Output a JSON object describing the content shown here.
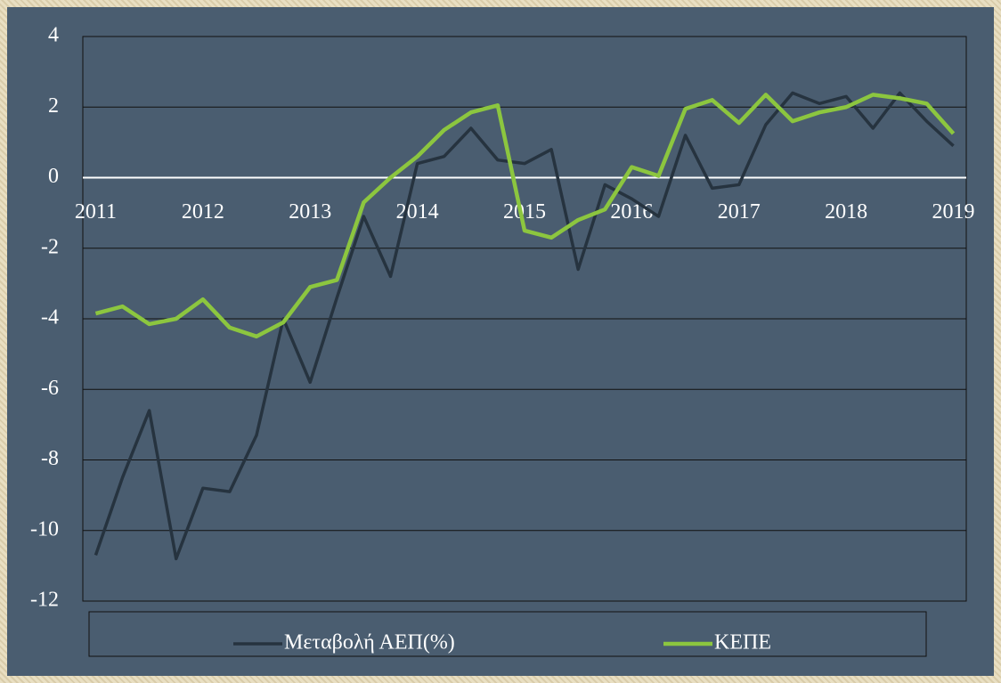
{
  "chart_data": {
    "type": "line",
    "x": [
      2011,
      2011.25,
      2011.5,
      2011.75,
      2012,
      2012.25,
      2012.5,
      2012.75,
      2013,
      2013.25,
      2013.5,
      2013.75,
      2014,
      2014.25,
      2014.5,
      2014.75,
      2015,
      2015.25,
      2015.5,
      2015.75,
      2016,
      2016.25,
      2016.5,
      2016.75,
      2017,
      2017.25,
      2017.5,
      2017.75,
      2018,
      2018.25,
      2018.5,
      2018.75,
      2019
    ],
    "series": [
      {
        "name": "Μεταβολή ΑΕΠ(%)",
        "color": "#26333f",
        "values": [
          -10.7,
          -8.5,
          -6.6,
          -10.8,
          -8.8,
          -8.9,
          -7.3,
          -4.0,
          -5.8,
          -3.4,
          -1.1,
          -2.8,
          0.4,
          0.6,
          1.4,
          0.5,
          0.4,
          0.8,
          -2.6,
          -0.2,
          -0.6,
          -1.1,
          1.2,
          -0.3,
          -0.2,
          1.5,
          2.4,
          2.1,
          2.3,
          1.4,
          2.4,
          1.6,
          0.9
        ]
      },
      {
        "name": "ΚΕΠΕ",
        "color": "#8cc63f",
        "values": [
          -3.85,
          -3.65,
          -4.15,
          -4.0,
          -3.45,
          -4.25,
          -4.5,
          -4.1,
          -3.1,
          -2.9,
          -0.7,
          0.0,
          0.6,
          1.35,
          1.85,
          2.05,
          -1.5,
          -1.7,
          -1.2,
          -0.9,
          0.3,
          0.05,
          1.95,
          2.2,
          1.55,
          2.35,
          1.6,
          1.85,
          2.0,
          2.35,
          2.25,
          2.1,
          1.25
        ]
      }
    ],
    "xlim": [
      2010.88,
      2019.12
    ],
    "xticks": [
      2011,
      2012,
      2013,
      2014,
      2015,
      2016,
      2017,
      2018,
      2019
    ],
    "ylim": [
      -12,
      4
    ],
    "yticks": [
      -12,
      -10,
      -8,
      -6,
      -4,
      -2,
      0,
      2,
      4
    ],
    "grid": true,
    "legend": "bottom"
  }
}
